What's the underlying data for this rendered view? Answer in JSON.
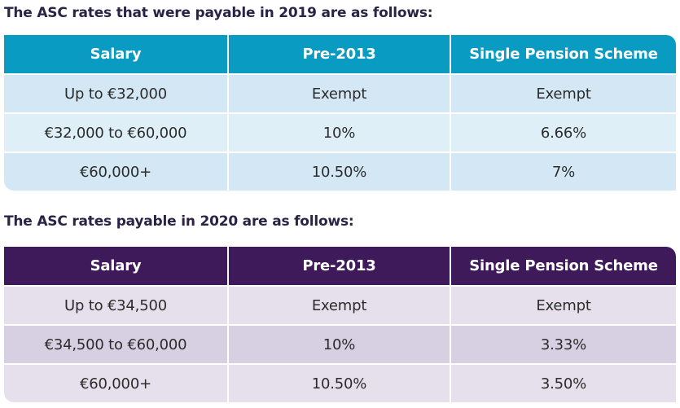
{
  "section_2019": {
    "heading": "The ASC rates that were payable in 2019 are as follows:",
    "columns": [
      "Salary",
      "Pre-2013",
      "Single Pension Scheme"
    ],
    "rows": [
      [
        "Up to €32,000",
        "Exempt",
        "Exempt"
      ],
      [
        "€32,000 to €60,000",
        "10%",
        "6.66%"
      ],
      [
        "€60,000+",
        "10.50%",
        "7%"
      ]
    ],
    "colors": {
      "header": "#0a9bc3",
      "row_light": "#d3e8f4",
      "row_alt": "#dfeff8"
    }
  },
  "section_2020": {
    "heading": "The ASC rates payable in 2020 are as follows:",
    "columns": [
      "Salary",
      "Pre-2013",
      "Single Pension Scheme"
    ],
    "rows": [
      [
        "Up to €34,500",
        "Exempt",
        "Exempt"
      ],
      [
        "€34,500 to €60,000",
        "10%",
        "3.33%"
      ],
      [
        "€60,000+",
        "10.50%",
        "3.50%"
      ]
    ],
    "colors": {
      "header": "#3f1a5a",
      "row_light": "#e5e0ec",
      "row_alt": "#d7d0e2"
    }
  }
}
